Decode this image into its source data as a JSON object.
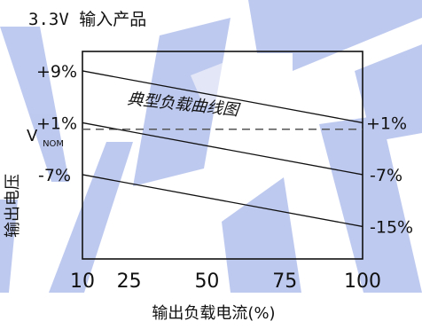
{
  "chart_data": {
    "type": "line",
    "title": "3.3V 输入产品",
    "annotation": "典型负载曲线图",
    "xlabel": "输出负载电流(%)",
    "ylabel": "输出电压",
    "xlim": [
      10,
      100
    ],
    "x_ticks": [
      "10",
      "25",
      "50",
      "75",
      "100"
    ],
    "y_ticks_left": [
      "+9%",
      "+1%",
      "-7%"
    ],
    "y_ticks_right": [
      "+1%",
      "-7%",
      "-15%"
    ],
    "ylim": [
      -20,
      12
    ],
    "grid": false,
    "reference_line": {
      "label_main": "V",
      "label_sub": "NOM",
      "y": 0,
      "style": "dashed"
    },
    "series": [
      {
        "x": [
          10,
          100
        ],
        "y": [
          9,
          1
        ]
      },
      {
        "x": [
          10,
          100
        ],
        "y": [
          1,
          -7
        ]
      },
      {
        "x": [
          10,
          100
        ],
        "y": [
          -7,
          -15
        ]
      }
    ]
  },
  "watermark": "WEK"
}
